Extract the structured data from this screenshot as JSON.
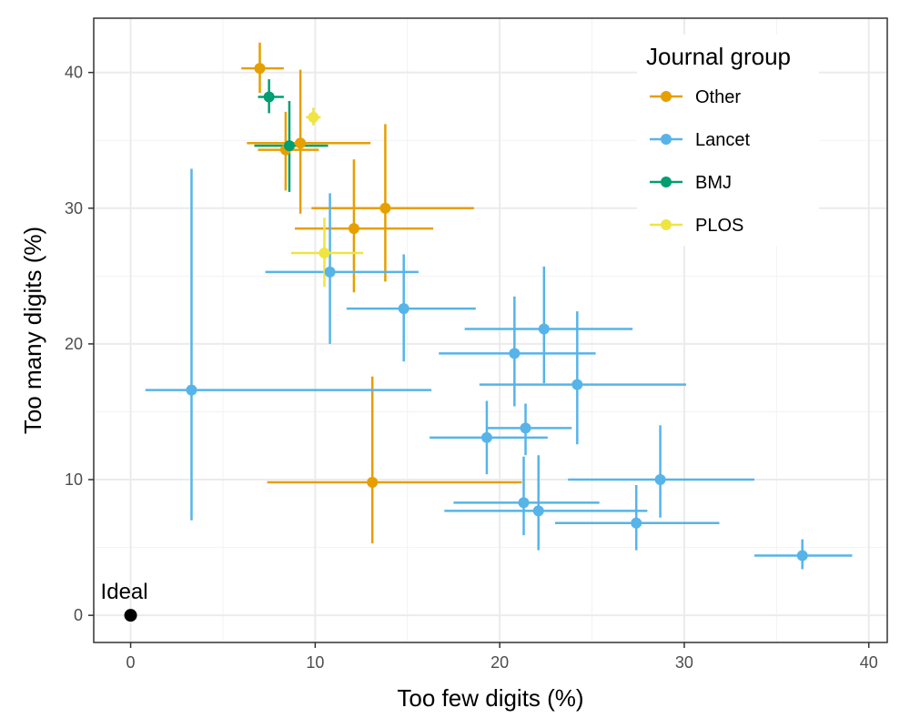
{
  "chart_data": {
    "type": "scatter",
    "xlabel": "Too few digits (%)",
    "ylabel": "Too many digits (%)",
    "xlim": [
      -2,
      41
    ],
    "ylim": [
      -2,
      44
    ],
    "x_ticks": [
      0,
      10,
      20,
      30,
      40
    ],
    "y_ticks": [
      0,
      10,
      20,
      30,
      40
    ],
    "x_tick_labels": [
      "0",
      "10",
      "20",
      "30",
      "40"
    ],
    "y_tick_labels": [
      "0",
      "10",
      "20",
      "30",
      "40"
    ],
    "grid": true,
    "legend": {
      "title": "Journal group",
      "position": "top-right"
    },
    "annotation": {
      "label": "Ideal",
      "x": 0,
      "y": 0,
      "color": "#000000"
    },
    "series": [
      {
        "name": "Other",
        "color": "#E69F00",
        "points": [
          {
            "x": 7.0,
            "y": 40.3,
            "xlo": 6.0,
            "xhi": 8.3,
            "ylo": 38.5,
            "yhi": 42.2
          },
          {
            "x": 9.2,
            "y": 34.8,
            "xlo": 6.3,
            "xhi": 13.0,
            "ylo": 29.6,
            "yhi": 40.2
          },
          {
            "x": 8.4,
            "y": 34.3,
            "xlo": 6.9,
            "xhi": 10.2,
            "ylo": 31.3,
            "yhi": 37.1
          },
          {
            "x": 13.8,
            "y": 30.0,
            "xlo": 9.8,
            "xhi": 18.6,
            "ylo": 24.6,
            "yhi": 36.2
          },
          {
            "x": 12.1,
            "y": 28.5,
            "xlo": 8.9,
            "xhi": 16.4,
            "ylo": 23.8,
            "yhi": 33.6
          },
          {
            "x": 13.1,
            "y": 9.8,
            "xlo": 7.4,
            "xhi": 21.2,
            "ylo": 5.3,
            "yhi": 17.6
          }
        ]
      },
      {
        "name": "Lancet",
        "color": "#56B4E9",
        "points": [
          {
            "x": 10.8,
            "y": 25.3,
            "xlo": 7.3,
            "xhi": 15.6,
            "ylo": 20.0,
            "yhi": 31.1
          },
          {
            "x": 14.8,
            "y": 22.6,
            "xlo": 11.7,
            "xhi": 18.7,
            "ylo": 18.7,
            "yhi": 26.6
          },
          {
            "x": 3.3,
            "y": 16.6,
            "xlo": 0.8,
            "xhi": 16.3,
            "ylo": 7.0,
            "yhi": 32.9
          },
          {
            "x": 22.4,
            "y": 21.1,
            "xlo": 18.1,
            "xhi": 27.2,
            "ylo": 17.1,
            "yhi": 25.7
          },
          {
            "x": 20.8,
            "y": 19.3,
            "xlo": 16.7,
            "xhi": 25.2,
            "ylo": 15.4,
            "yhi": 23.5
          },
          {
            "x": 24.2,
            "y": 17.0,
            "xlo": 18.9,
            "xhi": 30.1,
            "ylo": 12.6,
            "yhi": 22.4
          },
          {
            "x": 21.4,
            "y": 13.8,
            "xlo": 19.3,
            "xhi": 23.9,
            "ylo": 11.8,
            "yhi": 15.6
          },
          {
            "x": 19.3,
            "y": 13.1,
            "xlo": 16.2,
            "xhi": 22.6,
            "ylo": 10.4,
            "yhi": 15.8
          },
          {
            "x": 28.7,
            "y": 10.0,
            "xlo": 23.7,
            "xhi": 33.8,
            "ylo": 7.2,
            "yhi": 14.0
          },
          {
            "x": 21.3,
            "y": 8.3,
            "xlo": 17.5,
            "xhi": 25.4,
            "ylo": 5.9,
            "yhi": 11.7
          },
          {
            "x": 22.1,
            "y": 7.7,
            "xlo": 17.0,
            "xhi": 28.0,
            "ylo": 4.8,
            "yhi": 11.8
          },
          {
            "x": 27.4,
            "y": 6.8,
            "xlo": 23.0,
            "xhi": 31.9,
            "ylo": 4.8,
            "yhi": 9.6
          },
          {
            "x": 36.4,
            "y": 4.4,
            "xlo": 33.8,
            "xhi": 39.1,
            "ylo": 3.4,
            "yhi": 5.6
          }
        ]
      },
      {
        "name": "BMJ",
        "color": "#009E73",
        "points": [
          {
            "x": 7.5,
            "y": 38.2,
            "xlo": 6.9,
            "xhi": 8.3,
            "ylo": 37.0,
            "yhi": 39.5
          },
          {
            "x": 8.6,
            "y": 34.6,
            "xlo": 6.7,
            "xhi": 10.7,
            "ylo": 31.2,
            "yhi": 37.9
          }
        ]
      },
      {
        "name": "PLOS",
        "color": "#F0E442",
        "points": [
          {
            "x": 9.9,
            "y": 36.7,
            "xlo": 9.5,
            "xhi": 10.3,
            "ylo": 36.1,
            "yhi": 37.4
          },
          {
            "x": 10.5,
            "y": 26.7,
            "xlo": 8.7,
            "xhi": 12.6,
            "ylo": 24.2,
            "yhi": 29.3
          }
        ]
      }
    ]
  }
}
